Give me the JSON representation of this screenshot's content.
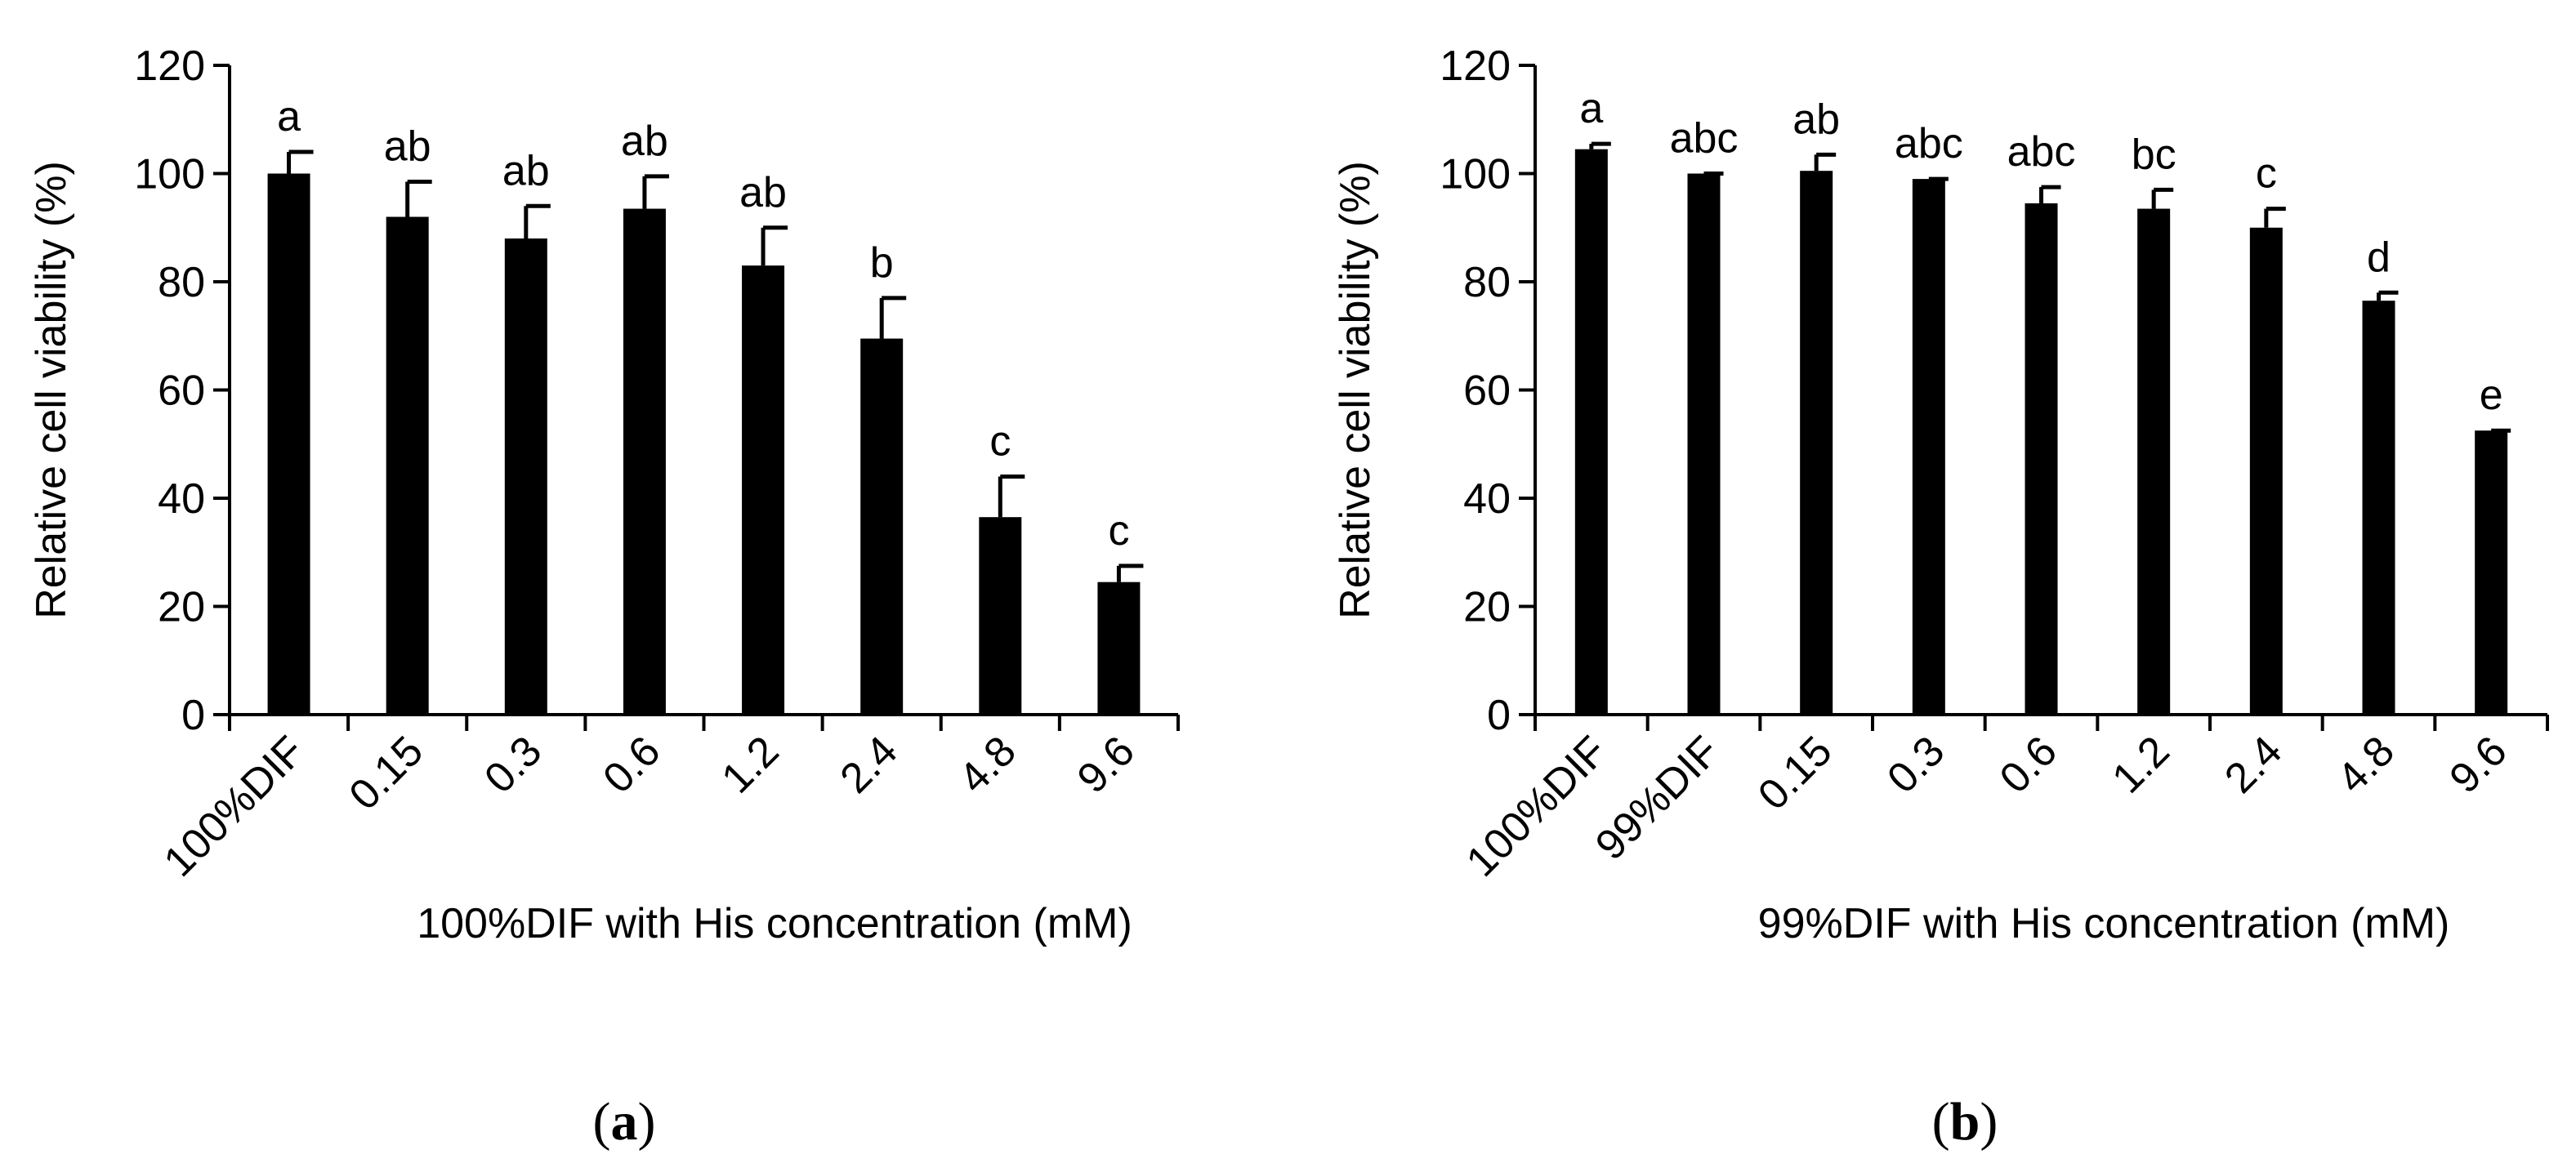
{
  "chart_data": [
    {
      "type": "bar",
      "panel_label_open": "(",
      "panel_label_letter": "a",
      "panel_label_close": ")",
      "ylabel": "Relative cell viability (%)",
      "xlabel": "100%DIF with His concentration (mM)",
      "ylim": [
        0,
        120
      ],
      "yticks": [
        0,
        20,
        40,
        60,
        80,
        100,
        120
      ],
      "grid": false,
      "bar_color": "#000000",
      "categories": [
        "100%DIF",
        "0.15",
        "0.3",
        "0.6",
        "1.2",
        "2.4",
        "4.8",
        "9.6"
      ],
      "values": [
        100,
        92,
        88,
        93.5,
        83,
        69.5,
        36.5,
        24.5
      ],
      "errors": [
        4,
        6.5,
        6,
        6,
        7,
        7.5,
        7.5,
        3
      ],
      "significance": [
        "a",
        "ab",
        "ab",
        "ab",
        "ab",
        "b",
        "c",
        "c"
      ]
    },
    {
      "type": "bar",
      "panel_label_open": "(",
      "panel_label_letter": "b",
      "panel_label_close": ")",
      "ylabel": "Relative cell viability (%)",
      "xlabel": "99%DIF with His concentration (mM)",
      "ylim": [
        0,
        120
      ],
      "yticks": [
        0,
        20,
        40,
        60,
        80,
        100,
        120
      ],
      "grid": false,
      "bar_color": "#000000",
      "categories": [
        "100%DIF",
        "99%DIF",
        "0.15",
        "0.3",
        "0.6",
        "1.2",
        "2.4",
        "4.8",
        "9.6"
      ],
      "values": [
        104.5,
        100,
        100.5,
        99,
        94.5,
        93.5,
        90,
        76.5,
        52.5
      ],
      "errors": [
        1,
        0,
        3,
        0,
        3,
        3.5,
        3.5,
        1.5,
        0
      ],
      "significance": [
        "a",
        "abc",
        "ab",
        "abc",
        "abc",
        "bc",
        "c",
        "d",
        "e"
      ]
    }
  ]
}
